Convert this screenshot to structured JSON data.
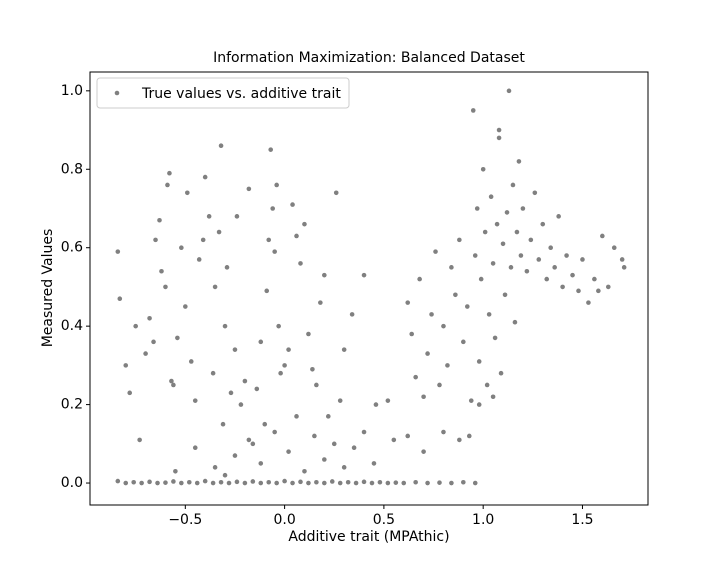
{
  "chart_data": {
    "type": "scatter",
    "title": "Information Maximization: Balanced Dataset",
    "x_label": "Additive trait (MPAthic)",
    "y_label": "Measured Values",
    "legend": "upper left",
    "xlim": [
      -0.98,
      1.83
    ],
    "ylim": [
      -0.056,
      1.048
    ],
    "xticks": [
      {
        "value": -0.5,
        "label": "−0.5"
      },
      {
        "value": 0,
        "label": "0.0"
      },
      0.5,
      {
        "value": 1,
        "label": "1.0"
      },
      1.5
    ],
    "yticks": [
      {
        "value": 0,
        "label": "0.0"
      },
      0.2,
      0.4,
      0.6,
      0.8,
      {
        "value": 1,
        "label": "1.0"
      }
    ],
    "x": [
      -0.84,
      -0.8,
      -0.76,
      -0.72,
      -0.68,
      -0.64,
      -0.6,
      -0.56,
      -0.52,
      -0.48,
      -0.44,
      -0.4,
      -0.36,
      -0.32,
      -0.28,
      -0.24,
      -0.2,
      -0.16,
      -0.12,
      -0.08,
      -0.04,
      0,
      0.04,
      0.08,
      0.12,
      0.16,
      0.2,
      0.24,
      0.28,
      0.32,
      0.36,
      0.4,
      0.44,
      0.48,
      0.52,
      0.56,
      0.6,
      0.66,
      0.72,
      0.78,
      0.84,
      0.9,
      0.96,
      -0.55,
      -0.45,
      -0.35,
      -0.3,
      -0.25,
      -0.18,
      -0.12,
      -0.05,
      0.02,
      0.06,
      0.1,
      0.15,
      0.2,
      0.25,
      0.3,
      0.35,
      0.4,
      0.45,
      0.55,
      0.62,
      0.7,
      0.8,
      0.88,
      0.93,
      -0.84,
      -0.83,
      -0.8,
      -0.78,
      -0.75,
      -0.73,
      -0.7,
      -0.68,
      -0.65,
      -0.63,
      -0.62,
      -0.6,
      -0.59,
      -0.58,
      -0.56,
      -0.54,
      -0.52,
      -0.5,
      -0.49,
      -0.47,
      -0.45,
      -0.43,
      -0.41,
      -0.4,
      -0.38,
      -0.36,
      -0.35,
      -0.33,
      -0.31,
      -0.3,
      -0.29,
      -0.27,
      -0.25,
      -0.24,
      -0.22,
      -0.2,
      -0.18,
      -0.16,
      -0.14,
      -0.12,
      -0.32,
      -0.57,
      -0.66,
      -0.1,
      -0.09,
      -0.08,
      -0.07,
      -0.06,
      -0.05,
      -0.04,
      -0.03,
      -0.02,
      0,
      0.02,
      0.04,
      0.06,
      0.08,
      0.1,
      0.12,
      0.14,
      0.16,
      0.18,
      0.2,
      0.22,
      0.26,
      0.28,
      0.3,
      0.34,
      0.4,
      0.46,
      0.52,
      0.62,
      0.64,
      0.66,
      0.68,
      0.7,
      0.72,
      0.74,
      0.76,
      0.78,
      0.8,
      0.82,
      0.84,
      0.86,
      0.88,
      0.9,
      0.92,
      0.94,
      0.95,
      0.96,
      0.97,
      0.98,
      0.99,
      1,
      1.01,
      1.02,
      1.03,
      1.04,
      1.05,
      1.06,
      1.07,
      1.08,
      1.09,
      1.1,
      1.11,
      1.12,
      1.13,
      1.14,
      1.15,
      1.16,
      1.17,
      1.18,
      1.19,
      1.2,
      1.22,
      1.24,
      1.26,
      1.28,
      1.3,
      1.32,
      1.34,
      1.36,
      1.38,
      1.4,
      1.42,
      1.45,
      1.48,
      1.5,
      1.53,
      1.56,
      1.58,
      1.6,
      1.63,
      1.66,
      1.7,
      1.71,
      0.98,
      1.05,
      1.08
    ],
    "series": [
      {
        "name": "True values vs. additive trait",
        "color": "#808080",
        "values": [
          0.005,
          0,
          0.002,
          0,
          0.003,
          0,
          0.001,
          0.004,
          0,
          0.002,
          0,
          0.005,
          0,
          0.002,
          0,
          0.003,
          0,
          0.004,
          0,
          0.002,
          0,
          0.005,
          0,
          0.003,
          0,
          0.002,
          0,
          0.004,
          0,
          0.002,
          0,
          0.003,
          0,
          0.002,
          0,
          0.001,
          0,
          0.002,
          0,
          0.001,
          0,
          0.002,
          0,
          0.03,
          0.09,
          0.04,
          0.02,
          0.07,
          0.11,
          0.05,
          0.13,
          0.08,
          0.17,
          0.03,
          0.12,
          0.06,
          0.1,
          0.04,
          0.09,
          0.13,
          0.05,
          0.11,
          0.12,
          0.08,
          0.13,
          0.11,
          0.12,
          0.59,
          0.47,
          0.3,
          0.23,
          0.4,
          0.11,
          0.33,
          0.42,
          0.62,
          0.67,
          0.54,
          0.5,
          0.76,
          0.79,
          0.25,
          0.37,
          0.6,
          0.45,
          0.74,
          0.31,
          0.21,
          0.57,
          0.62,
          0.78,
          0.68,
          0.28,
          0.5,
          0.64,
          0.15,
          0.4,
          0.55,
          0.23,
          0.34,
          0.68,
          0.2,
          0.26,
          0.75,
          0.1,
          0.24,
          0.36,
          0.86,
          0.26,
          0.36,
          0.15,
          0.49,
          0.62,
          0.85,
          0.7,
          0.59,
          0.76,
          0.4,
          0.28,
          0.3,
          0.34,
          0.71,
          0.63,
          0.56,
          0.66,
          0.38,
          0.29,
          0.25,
          0.46,
          0.53,
          0.17,
          0.74,
          0.21,
          0.34,
          0.43,
          0.53,
          0.2,
          0.21,
          0.46,
          0.38,
          0.27,
          0.52,
          0.22,
          0.33,
          0.43,
          0.59,
          0.25,
          0.4,
          0.3,
          0.55,
          0.48,
          0.62,
          0.36,
          0.45,
          0.21,
          0.95,
          0.58,
          0.7,
          0.31,
          0.52,
          0.8,
          0.64,
          0.25,
          0.43,
          0.73,
          0.56,
          0.37,
          0.66,
          0.88,
          0.28,
          0.61,
          0.48,
          0.69,
          1,
          0.55,
          0.76,
          0.41,
          0.64,
          0.82,
          0.58,
          0.7,
          0.54,
          0.62,
          0.74,
          0.57,
          0.66,
          0.52,
          0.6,
          0.55,
          0.68,
          0.5,
          0.58,
          0.53,
          0.49,
          0.57,
          0.46,
          0.52,
          0.49,
          0.63,
          0.5,
          0.6,
          0.57,
          0.55,
          0.2,
          0.22,
          0.9
        ]
      }
    ]
  }
}
